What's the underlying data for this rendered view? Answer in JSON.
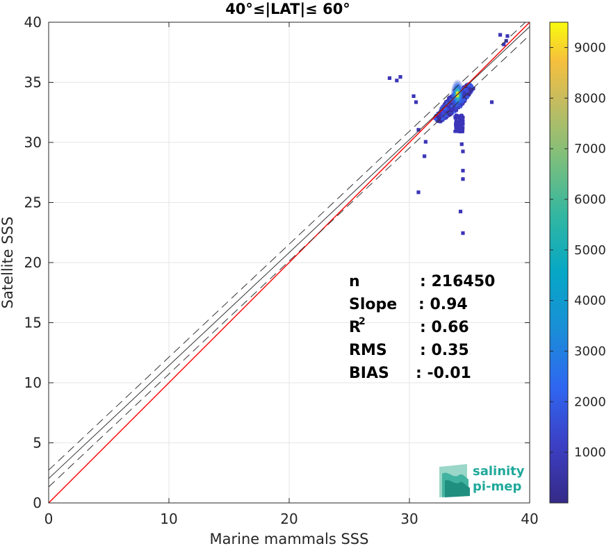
{
  "chart_data": {
    "type": "heatmap",
    "title": "40°≤|LAT|≤ 60°",
    "xlabel": "Marine mammals SSS",
    "ylabel": "Satellite SSS",
    "xlim": [
      0,
      40
    ],
    "ylim": [
      0,
      40
    ],
    "xticks": [
      "0",
      "10",
      "20",
      "30",
      "40"
    ],
    "yticks": [
      "0",
      "5",
      "10",
      "15",
      "20",
      "25",
      "30",
      "35",
      "40"
    ],
    "grid": true,
    "colorbar": {
      "range": [
        0,
        9500
      ],
      "ticks": [
        "1000",
        "2000",
        "3000",
        "4000",
        "5000",
        "6000",
        "7000",
        "8000",
        "9000"
      ],
      "colormap": "parula"
    },
    "lines": [
      {
        "name": "1:1 line",
        "color": "#ff0000",
        "style": "solid",
        "intercept": 0,
        "slope": 1
      },
      {
        "name": "regression",
        "color": "#333333",
        "style": "solid",
        "intercept": 2.03,
        "slope": 0.94
      },
      {
        "name": "regression + 2 sigma",
        "color": "#333333",
        "style": "dashed",
        "intercept": 2.73,
        "slope": 0.94
      },
      {
        "name": "regression - 2 sigma",
        "color": "#333333",
        "style": "dashed",
        "intercept": 1.33,
        "slope": 0.94
      }
    ],
    "density_core": {
      "x": 34.0,
      "y": 34.0,
      "peak": 9500
    },
    "density_cluster": {
      "x_range": [
        31.5,
        35.5
      ],
      "y_range": [
        31.5,
        35.2
      ]
    },
    "outliers": [
      {
        "x": 28.2,
        "y": 35.5
      },
      {
        "x": 28.8,
        "y": 35.3
      },
      {
        "x": 29.1,
        "y": 35.6
      },
      {
        "x": 30.2,
        "y": 34.0
      },
      {
        "x": 30.4,
        "y": 33.5
      },
      {
        "x": 30.6,
        "y": 31.2
      },
      {
        "x": 31.1,
        "y": 29.0
      },
      {
        "x": 31.2,
        "y": 30.2
      },
      {
        "x": 30.6,
        "y": 26.0
      },
      {
        "x": 34.2,
        "y": 30.0
      },
      {
        "x": 34.3,
        "y": 29.4
      },
      {
        "x": 34.3,
        "y": 27.8
      },
      {
        "x": 34.3,
        "y": 27.1
      },
      {
        "x": 34.1,
        "y": 24.4
      },
      {
        "x": 34.3,
        "y": 22.6
      },
      {
        "x": 36.7,
        "y": 33.5
      },
      {
        "x": 37.9,
        "y": 38.6
      },
      {
        "x": 38.0,
        "y": 39.0
      },
      {
        "x": 37.7,
        "y": 38.3
      },
      {
        "x": 37.4,
        "y": 39.1
      }
    ],
    "stats": [
      {
        "label": "n",
        "value": ": 216450"
      },
      {
        "label": "Slope",
        "value": ": 0.94"
      },
      {
        "label": "R",
        "sup": "2",
        "value": ": 0.66"
      },
      {
        "label": "RMS",
        "value": ": 0.35"
      },
      {
        "label": "BIAS",
        "value": ": -0.01"
      }
    ]
  },
  "logo": {
    "line1": "salinity",
    "line2": "pi-mep"
  }
}
